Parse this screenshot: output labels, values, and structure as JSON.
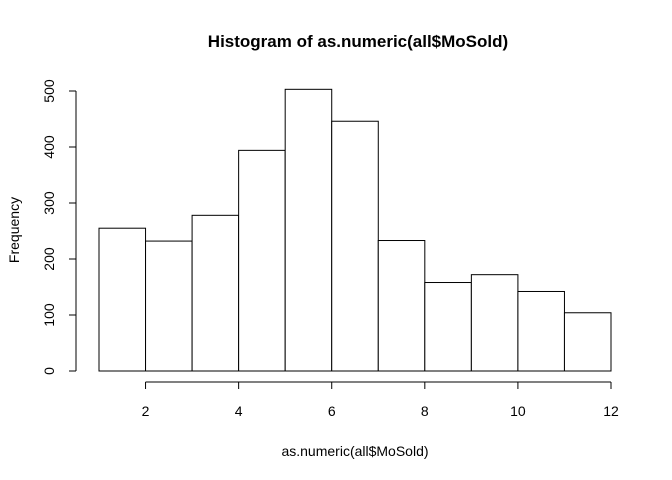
{
  "chart_data": {
    "type": "bar",
    "title": "Histogram of as.numeric(all$MoSold)",
    "xlabel": "as.numeric(all$MoSold)",
    "ylabel": "Frequency",
    "bins": [
      {
        "start": 1,
        "end": 2,
        "value": 255
      },
      {
        "start": 2,
        "end": 3,
        "value": 232
      },
      {
        "start": 3,
        "end": 4,
        "value": 278
      },
      {
        "start": 4,
        "end": 5,
        "value": 394
      },
      {
        "start": 5,
        "end": 6,
        "value": 503
      },
      {
        "start": 6,
        "end": 7,
        "value": 446
      },
      {
        "start": 7,
        "end": 8,
        "value": 233
      },
      {
        "start": 8,
        "end": 9,
        "value": 158
      },
      {
        "start": 9,
        "end": 10,
        "value": 172
      },
      {
        "start": 10,
        "end": 11,
        "value": 142
      },
      {
        "start": 11,
        "end": 12,
        "value": 104
      }
    ],
    "xlim": [
      1,
      12
    ],
    "ylim": [
      0,
      500
    ],
    "xticks": [
      2,
      4,
      6,
      8,
      10,
      12
    ],
    "yticks": [
      0,
      100,
      200,
      300,
      400,
      500
    ],
    "grid": false,
    "colors": {
      "bar_fill": "#ffffff",
      "bar_stroke": "#000000"
    }
  }
}
